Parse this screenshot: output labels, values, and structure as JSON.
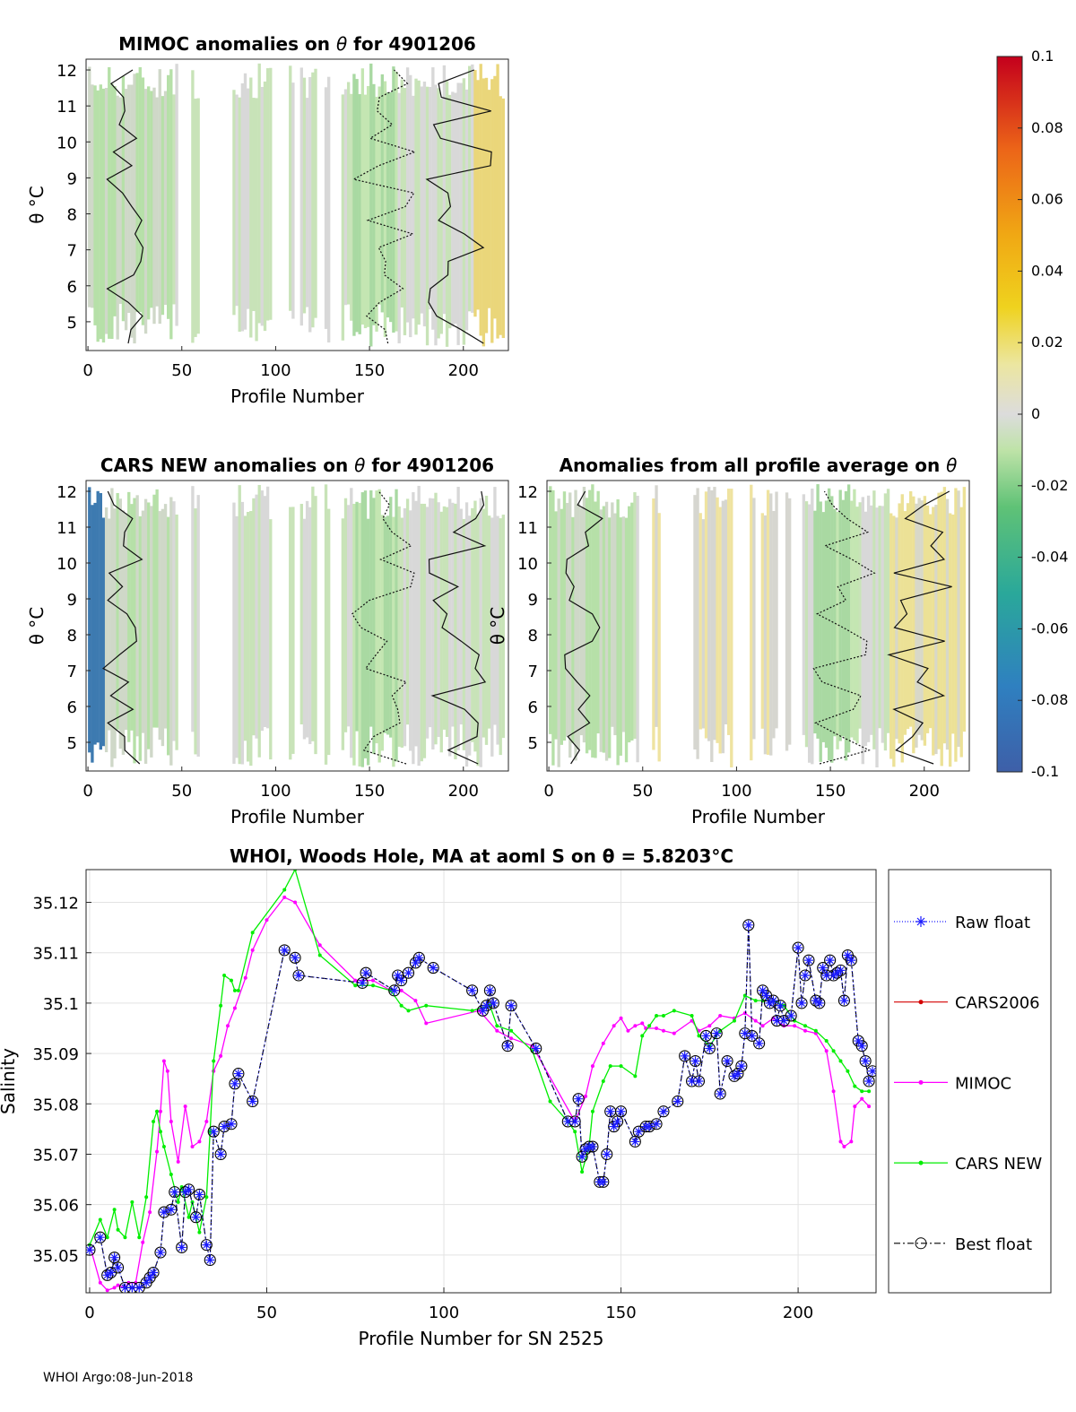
{
  "figure_footer": "WHOI Argo:08-Jun-2018",
  "colors": {
    "raw_float": "#1a1aff",
    "cars2006": "#d40000",
    "mimoc": "#ff00ff",
    "cars_new": "#00ee00",
    "best_float": "#000000"
  },
  "chart_data": [
    {
      "type": "heatmap",
      "id": "mimoc",
      "title_prefix": "MIMOC anomalies on ",
      "title_symbol": "θ",
      "title_suffix": "  for 4901206",
      "xlabel": "Profile Number",
      "ylabel": "θ °C",
      "xlim": [
        -1,
        224
      ],
      "ylim": [
        4.2,
        12.3
      ],
      "xticks": [
        "0",
        "50",
        "100",
        "150",
        "200"
      ],
      "yticks": [
        "5",
        "6",
        "7",
        "8",
        "9",
        "10",
        "11",
        "12"
      ]
    },
    {
      "type": "heatmap",
      "id": "carsnew",
      "title_prefix": "CARS NEW anomalies on ",
      "title_symbol": "θ",
      "title_suffix": " for 4901206",
      "xlabel": "Profile Number",
      "ylabel": "θ °C",
      "xlim": [
        -1,
        224
      ],
      "ylim": [
        4.2,
        12.3
      ],
      "xticks": [
        "0",
        "50",
        "100",
        "150",
        "200"
      ],
      "yticks": [
        "5",
        "6",
        "7",
        "8",
        "9",
        "10",
        "11",
        "12"
      ]
    },
    {
      "type": "heatmap",
      "id": "allavg",
      "title_prefix": "Anomalies from all profile average on ",
      "title_symbol": "θ",
      "title_suffix": "",
      "xlabel": "Profile Number",
      "ylabel": "θ °C",
      "xlim": [
        -1,
        224
      ],
      "ylim": [
        4.2,
        12.3
      ],
      "xticks": [
        "0",
        "50",
        "100",
        "150",
        "200"
      ],
      "yticks": [
        "5",
        "6",
        "7",
        "8",
        "9",
        "10",
        "11",
        "12"
      ]
    },
    {
      "type": "colorbar",
      "range": [
        -0.1,
        0.1
      ],
      "tick_labels": [
        "0.1",
        "0.08",
        "0.06",
        "0.04",
        "0.02",
        "0",
        "-0.02",
        "-0.04",
        "-0.06",
        "-0.08",
        "-0.1"
      ]
    },
    {
      "type": "line",
      "title": "WHOI, Woods Hole, MA at aoml S on θ = 5.8203°C",
      "xlabel": "Profile Number for SN 2525",
      "ylabel": "Salinity",
      "xlim": [
        -1,
        222
      ],
      "ylim": [
        35.0425,
        35.1265
      ],
      "xticks": [
        0,
        50,
        100,
        150,
        200
      ],
      "yticks": [
        35.05,
        35.06,
        35.07,
        35.08,
        35.09,
        35.1,
        35.11,
        35.12
      ],
      "ytick_labels": [
        "35.05",
        "35.06",
        "35.07",
        "35.08",
        "35.09",
        "35.1",
        "35.11",
        "35.12"
      ],
      "legend": [
        "Raw float",
        "CARS2006",
        "MIMOC",
        "CARS NEW",
        "Best float"
      ],
      "legend_position": "outside-right",
      "series": [
        {
          "name": "Raw float",
          "x": [
            0,
            3,
            5,
            6,
            7,
            8,
            10,
            12,
            14,
            16,
            17,
            18,
            20,
            21,
            23,
            24,
            26,
            27,
            28,
            30,
            31,
            33,
            34,
            35,
            37,
            38,
            40,
            41,
            42,
            46,
            55,
            58,
            59,
            77,
            78,
            86,
            87,
            88,
            90,
            92,
            93,
            97,
            108,
            111,
            112,
            113,
            114,
            118,
            119,
            126,
            135,
            137,
            138,
            139,
            140,
            141,
            142,
            144,
            145,
            146,
            147,
            148,
            149,
            150,
            154,
            155,
            157,
            158,
            160,
            162,
            166,
            168,
            170,
            171,
            172,
            174,
            175,
            177,
            178,
            180,
            182,
            183,
            184,
            185,
            186,
            187,
            189,
            190,
            191,
            192,
            193,
            194,
            195,
            196,
            198,
            200,
            201,
            202,
            203,
            205,
            206,
            207,
            208,
            209,
            210,
            211,
            212,
            213,
            214,
            215,
            217,
            218,
            219,
            220,
            221
          ],
          "y": [
            35.051,
            35.0535,
            35.046,
            35.0465,
            35.0495,
            35.0475,
            35.0435,
            35.0435,
            35.0435,
            35.0445,
            35.0455,
            35.0465,
            35.0505,
            35.0585,
            35.059,
            35.0625,
            35.0515,
            35.0625,
            35.063,
            35.0575,
            35.062,
            35.052,
            35.049,
            35.0745,
            35.07,
            35.0755,
            35.076,
            35.084,
            35.086,
            35.0805,
            35.1105,
            35.109,
            35.1055,
            35.104,
            35.106,
            35.1025,
            35.1055,
            35.1045,
            35.106,
            35.108,
            35.109,
            35.107,
            35.1025,
            35.0985,
            35.0995,
            35.1025,
            35.1,
            35.0915,
            35.0995,
            35.091,
            35.0765,
            35.0765,
            35.081,
            35.0695,
            35.071,
            35.0715,
            35.0715,
            35.0645,
            35.0645,
            35.07,
            35.0785,
            35.0755,
            35.0765,
            35.0785,
            35.0725,
            35.0745,
            35.0755,
            35.0755,
            35.076,
            35.0785,
            35.0805,
            35.0895,
            35.0845,
            35.0885,
            35.0845,
            35.0935,
            35.091,
            35.094,
            35.082,
            35.0885,
            35.0855,
            35.086,
            35.0875,
            35.094,
            35.1155,
            35.0935,
            35.092,
            35.1025,
            35.1015,
            35.1,
            35.1005,
            35.0965,
            35.0995,
            35.0965,
            35.0975,
            35.111,
            35.1,
            35.1055,
            35.1085,
            35.1005,
            35.1,
            35.107,
            35.1055,
            35.1085,
            35.1055,
            35.106,
            35.1065,
            35.1005,
            35.1095,
            35.1085,
            35.0925,
            35.0915,
            35.0885,
            35.0845,
            35.0865
          ]
        },
        {
          "name": "CARS2006",
          "x": [],
          "y": []
        },
        {
          "name": "MIMOC",
          "x": [
            0,
            3,
            5,
            7,
            8,
            10,
            11,
            13,
            15,
            17,
            19,
            20,
            21,
            22,
            23,
            25,
            27,
            29,
            31,
            33,
            35,
            37,
            39,
            41,
            44,
            46,
            50,
            55,
            58,
            65,
            75,
            80,
            85,
            88,
            92,
            95,
            110,
            115,
            119,
            125,
            137,
            140,
            142,
            145,
            148,
            150,
            152,
            154,
            156,
            157,
            160,
            162,
            165,
            170,
            172,
            175,
            178,
            182,
            185,
            188,
            190,
            193,
            196,
            199,
            202,
            205,
            208,
            210,
            212,
            213,
            215,
            216,
            218,
            220
          ],
          "y": [
            35.052,
            35.0445,
            35.043,
            35.0435,
            35.044,
            35.0435,
            35.0445,
            35.0445,
            35.0525,
            35.0585,
            35.0705,
            35.0785,
            35.0885,
            35.0865,
            35.0765,
            35.0685,
            35.0795,
            35.0715,
            35.0725,
            35.0765,
            35.0865,
            35.0895,
            35.0955,
            35.099,
            35.105,
            35.1105,
            35.1165,
            35.121,
            35.12,
            35.1115,
            35.1045,
            35.1045,
            35.1025,
            35.1025,
            35.1005,
            35.096,
            35.0985,
            35.0945,
            35.093,
            35.0915,
            35.0765,
            35.0815,
            35.0875,
            35.092,
            35.0955,
            35.097,
            35.0945,
            35.0955,
            35.096,
            35.095,
            35.095,
            35.0945,
            35.094,
            35.0965,
            35.0945,
            35.0955,
            35.0975,
            35.097,
            35.098,
            35.0965,
            35.0955,
            35.097,
            35.0955,
            35.0955,
            35.0945,
            35.094,
            35.0905,
            35.0825,
            35.0725,
            35.0715,
            35.0725,
            35.0795,
            35.081,
            35.0795
          ]
        },
        {
          "name": "CARS NEW",
          "x": [
            0,
            3,
            5,
            7,
            8,
            10,
            12,
            14,
            16,
            18,
            19,
            20,
            21,
            23,
            25,
            26,
            28,
            29,
            31,
            33,
            34,
            35,
            37,
            38,
            40,
            41,
            42,
            46,
            55,
            58,
            65,
            75,
            80,
            85,
            88,
            90,
            95,
            108,
            113,
            115,
            119,
            125,
            130,
            135,
            137,
            139,
            141,
            142,
            145,
            147,
            150,
            154,
            156,
            158,
            160,
            162,
            165,
            170,
            172,
            175,
            178,
            182,
            185,
            188,
            190,
            193,
            196,
            199,
            202,
            205,
            208,
            210,
            212,
            214,
            216,
            218,
            220
          ],
          "y": [
            35.052,
            35.057,
            35.0535,
            35.059,
            35.055,
            35.0535,
            35.0605,
            35.0535,
            35.0615,
            35.0765,
            35.0785,
            35.0745,
            35.0715,
            35.066,
            35.0605,
            35.0635,
            35.0575,
            35.0605,
            35.0545,
            35.0615,
            35.0745,
            35.0885,
            35.0995,
            35.1055,
            35.1045,
            35.1025,
            35.1025,
            35.114,
            35.1225,
            35.1265,
            35.1095,
            35.1035,
            35.1035,
            35.1025,
            35.0995,
            35.0985,
            35.0995,
            35.0985,
            35.0995,
            35.0955,
            35.0945,
            35.0905,
            35.0805,
            35.0765,
            35.0745,
            35.0665,
            35.0715,
            35.0785,
            35.0845,
            35.0875,
            35.0875,
            35.0855,
            35.0935,
            35.0955,
            35.0975,
            35.0975,
            35.0985,
            35.0975,
            35.0935,
            35.0915,
            35.0945,
            35.0965,
            35.1015,
            35.1005,
            35.1005,
            35.1005,
            35.0995,
            35.0965,
            35.0955,
            35.0945,
            35.0925,
            35.0905,
            35.0885,
            35.0865,
            35.0835,
            35.0825,
            35.0825
          ]
        },
        {
          "name": "Best float",
          "x": [
            0,
            3,
            5,
            6,
            7,
            8,
            10,
            12,
            14,
            16,
            17,
            18,
            20,
            21,
            23,
            24,
            26,
            27,
            28,
            30,
            31,
            33,
            34,
            35,
            37,
            38,
            40,
            41,
            42,
            46,
            55,
            58,
            59,
            77,
            78,
            86,
            87,
            88,
            90,
            92,
            93,
            97,
            108,
            111,
            112,
            113,
            114,
            118,
            119,
            126,
            135,
            137,
            138,
            139,
            140,
            141,
            142,
            144,
            145,
            146,
            147,
            148,
            149,
            150,
            154,
            155,
            157,
            158,
            160,
            162,
            166,
            168,
            170,
            171,
            172,
            174,
            175,
            177,
            178,
            180,
            182,
            183,
            184,
            185,
            186,
            187,
            189,
            190,
            191,
            192,
            193,
            194,
            195,
            196,
            198,
            200,
            201,
            202,
            203,
            205,
            206,
            207,
            208,
            209,
            210,
            211,
            212,
            213,
            214,
            215,
            217,
            218,
            219,
            220,
            221
          ],
          "y": [
            35.051,
            35.0535,
            35.046,
            35.0465,
            35.0495,
            35.0475,
            35.0435,
            35.0435,
            35.0435,
            35.0445,
            35.0455,
            35.0465,
            35.0505,
            35.0585,
            35.059,
            35.0625,
            35.0515,
            35.0625,
            35.063,
            35.0575,
            35.062,
            35.052,
            35.049,
            35.0745,
            35.07,
            35.0755,
            35.076,
            35.084,
            35.086,
            35.0805,
            35.1105,
            35.109,
            35.1055,
            35.104,
            35.106,
            35.1025,
            35.1055,
            35.1045,
            35.106,
            35.108,
            35.109,
            35.107,
            35.1025,
            35.0985,
            35.0995,
            35.1025,
            35.1,
            35.0915,
            35.0995,
            35.091,
            35.0765,
            35.0765,
            35.081,
            35.0695,
            35.071,
            35.0715,
            35.0715,
            35.0645,
            35.0645,
            35.07,
            35.0785,
            35.0755,
            35.0765,
            35.0785,
            35.0725,
            35.0745,
            35.0755,
            35.0755,
            35.076,
            35.0785,
            35.0805,
            35.0895,
            35.0845,
            35.0885,
            35.0845,
            35.0935,
            35.091,
            35.094,
            35.082,
            35.0885,
            35.0855,
            35.086,
            35.0875,
            35.094,
            35.1155,
            35.0935,
            35.092,
            35.1025,
            35.1015,
            35.1,
            35.1005,
            35.0965,
            35.0995,
            35.0965,
            35.0975,
            35.111,
            35.1,
            35.1055,
            35.1085,
            35.1005,
            35.1,
            35.107,
            35.1055,
            35.1085,
            35.1055,
            35.106,
            35.1065,
            35.1005,
            35.1095,
            35.1085,
            35.0925,
            35.0915,
            35.0885,
            35.0845,
            35.0865
          ]
        }
      ]
    }
  ]
}
